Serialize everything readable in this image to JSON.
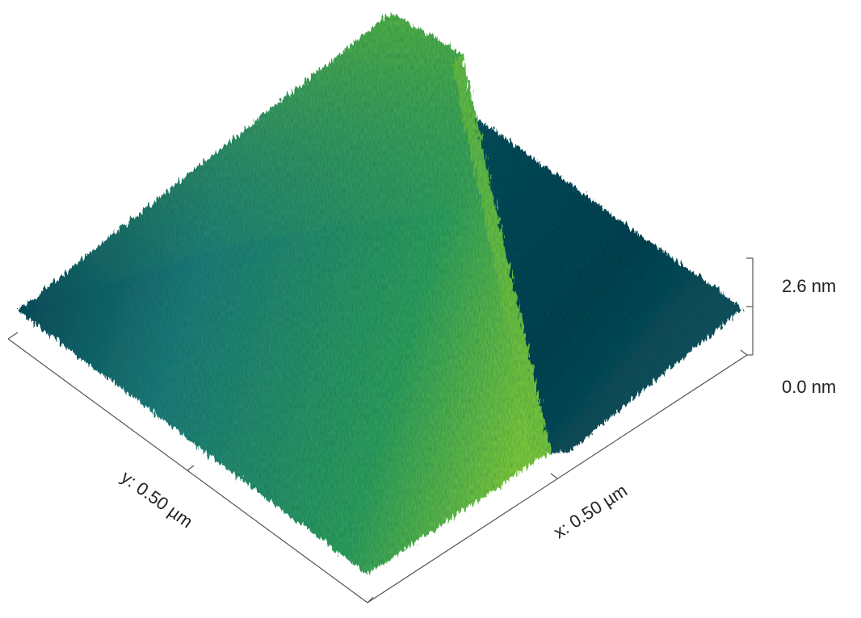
{
  "z_axis": {
    "top_label": "2.6 nm",
    "bottom_label": "0.0 nm"
  },
  "y_axis": {
    "label": "y: 0.50 µm"
  },
  "x_axis": {
    "label": "x: 0.50 µm"
  }
}
